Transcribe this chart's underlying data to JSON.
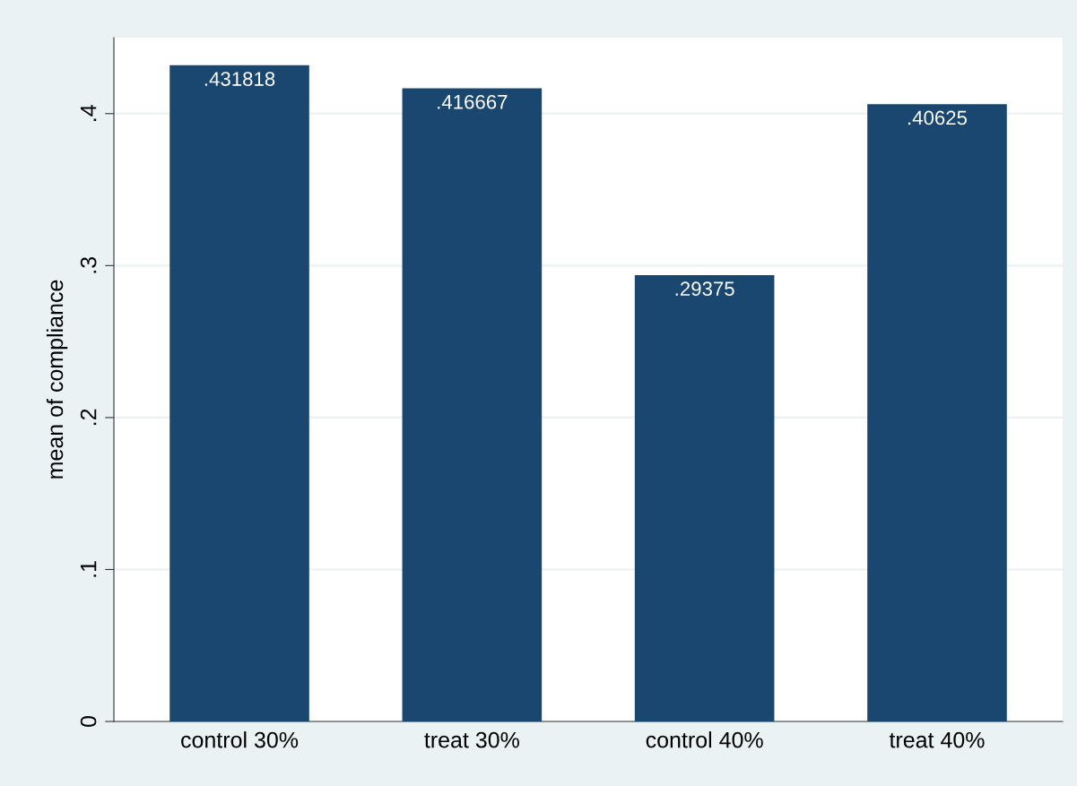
{
  "chart_data": {
    "type": "bar",
    "categories": [
      "control 30%",
      "treat 30%",
      "control 40%",
      "treat 40%"
    ],
    "values": [
      0.431818,
      0.416667,
      0.29375,
      0.40625
    ],
    "value_labels": [
      ".431818",
      ".416667",
      ".29375",
      ".40625"
    ],
    "color": "#1a476f",
    "ylabel": "mean of compliance",
    "ylim": [
      0,
      0.45
    ],
    "yticks": [
      0,
      {
        "value": 0.1,
        "label": ".1"
      },
      {
        "value": 0.2,
        "label": ".2"
      },
      {
        "value": 0.3,
        "label": ".3"
      },
      {
        "value": 0.4,
        "label": ".4"
      }
    ],
    "grid": "y"
  }
}
